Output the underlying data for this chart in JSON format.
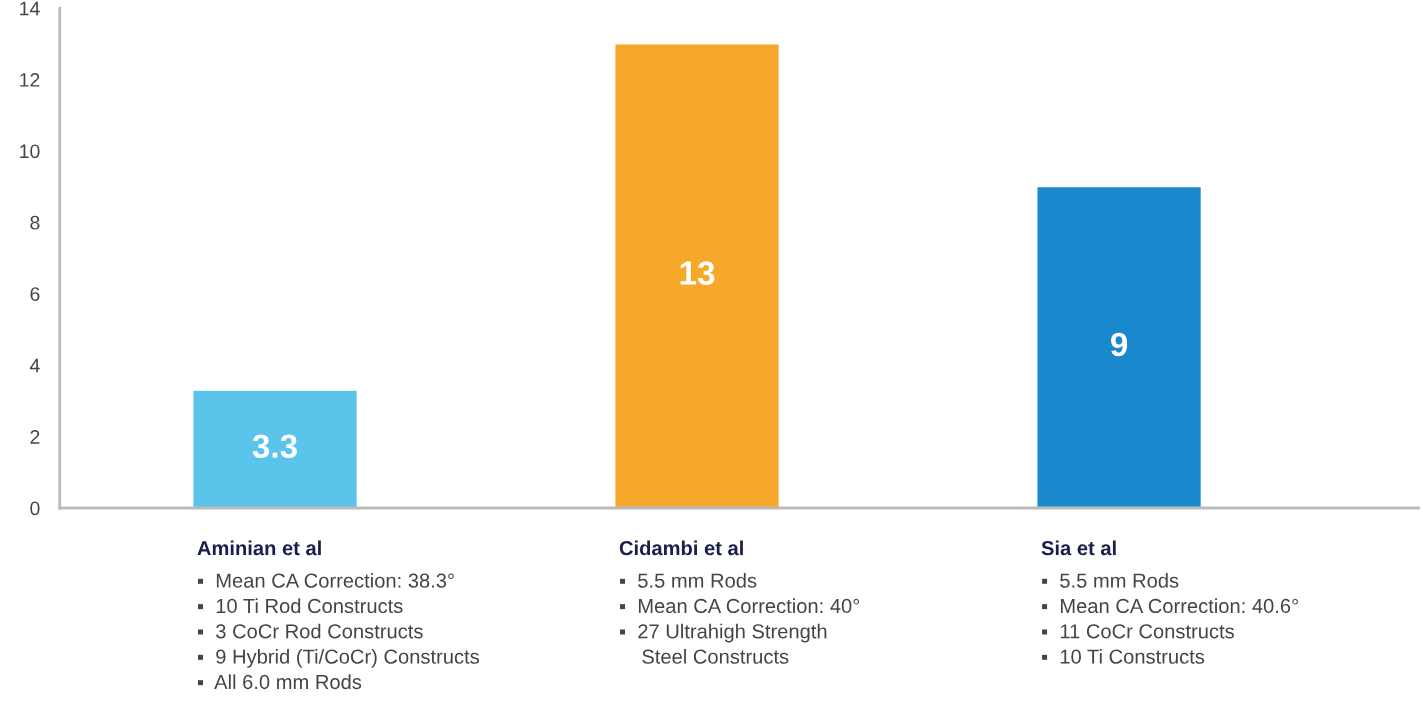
{
  "chart_data": {
    "type": "bar",
    "categories": [
      "Aminian et al",
      "Cidambi et al",
      "Sia et al"
    ],
    "values": [
      3.3,
      13,
      9
    ],
    "colors": [
      "#5bc4ea",
      "#f5a82a",
      "#1a88cc"
    ],
    "ylim": [
      0,
      14
    ],
    "yticks": [
      0,
      2,
      4,
      6,
      8,
      10,
      12,
      14
    ],
    "data_labels": true,
    "grid": false,
    "legend": false,
    "annotations": [
      "▪  Mean CA Correction: 38.3°\n▪  10 Ti Rod Constructs\n▪  3 CoCr Rod Constructs\n▪  9 Hybrid (Ti/CoCr) Constructs\n▪  All 6.0 mm Rods",
      "▪  5.5 mm Rods\n▪  Mean CA Correction: 40°\n▪  27 Ultrahigh Strength\n    Steel Constructs",
      "▪  5.5 mm Rods\n▪  Mean CA Correction: 40.6°\n▪  11 CoCr Constructs\n▪  10 Ti Constructs"
    ]
  }
}
